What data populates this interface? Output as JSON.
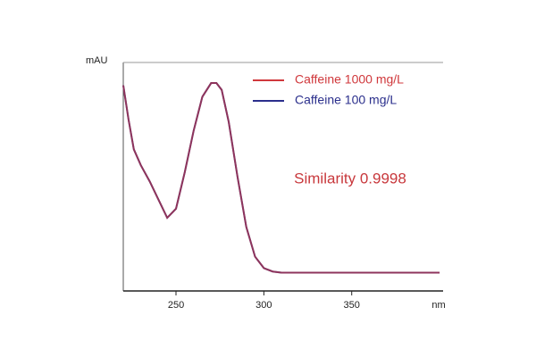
{
  "chart_data": {
    "type": "line",
    "y_label": "mAU",
    "x_label": "nm",
    "annotation": "Similarity 0.9998",
    "x": [
      220,
      223,
      226,
      230,
      235,
      240,
      245,
      250,
      255,
      260,
      265,
      270,
      273,
      276,
      280,
      285,
      290,
      295,
      300,
      305,
      310,
      320,
      340,
      360,
      380,
      400
    ],
    "series": [
      {
        "name": "Caffeine 100 mg/L",
        "color": "#2b2f8c",
        "values": [
          0.9,
          0.75,
          0.62,
          0.55,
          0.48,
          0.4,
          0.32,
          0.36,
          0.52,
          0.7,
          0.85,
          0.91,
          0.91,
          0.88,
          0.74,
          0.5,
          0.28,
          0.15,
          0.1,
          0.085,
          0.08,
          0.08,
          0.08,
          0.08,
          0.08,
          0.08
        ]
      },
      {
        "name": "Caffeine 1000 mg/L",
        "color": "#d0383c",
        "values": [
          0.9,
          0.75,
          0.62,
          0.55,
          0.48,
          0.4,
          0.32,
          0.36,
          0.52,
          0.7,
          0.85,
          0.91,
          0.91,
          0.88,
          0.74,
          0.5,
          0.28,
          0.15,
          0.1,
          0.085,
          0.08,
          0.08,
          0.08,
          0.08,
          0.08,
          0.08
        ]
      }
    ],
    "xlim": [
      220,
      402
    ],
    "xticks": [
      250,
      300,
      350
    ],
    "ylim": [
      0,
      1
    ]
  }
}
